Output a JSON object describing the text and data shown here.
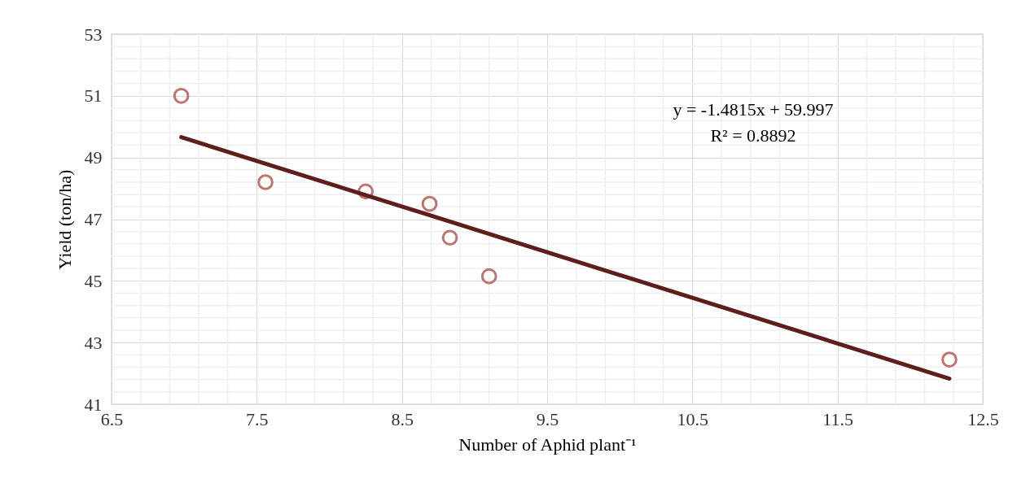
{
  "chart_data": {
    "type": "scatter",
    "xlabel": "Number of Aphid plant⁻¹",
    "ylabel": "Yield (ton/ha)",
    "x": [
      6.98,
      7.56,
      8.25,
      8.69,
      8.83,
      9.1,
      12.27
    ],
    "series": [
      {
        "color": "#c07470",
        "marker": "circle",
        "values": [
          51.0,
          48.2,
          47.9,
          47.5,
          46.4,
          45.15,
          42.45
        ]
      },
      {
        "type": "line",
        "color": "#5e1f1c",
        "line_style": "solid",
        "x": [
          6.98,
          12.27
        ],
        "values": [
          49.66,
          41.83
        ]
      }
    ],
    "annotations": [
      "y = -1.4815x + 59.997",
      "R² = 0.8892"
    ],
    "xlim": [
      6.5,
      12.5
    ],
    "xticks": [
      6.5,
      7.5,
      8.5,
      9.5,
      10.5,
      11.5,
      12.5
    ],
    "ylim": [
      41,
      53
    ],
    "yticks": [
      41,
      43,
      45,
      47,
      49,
      51,
      53
    ],
    "grid": true
  }
}
